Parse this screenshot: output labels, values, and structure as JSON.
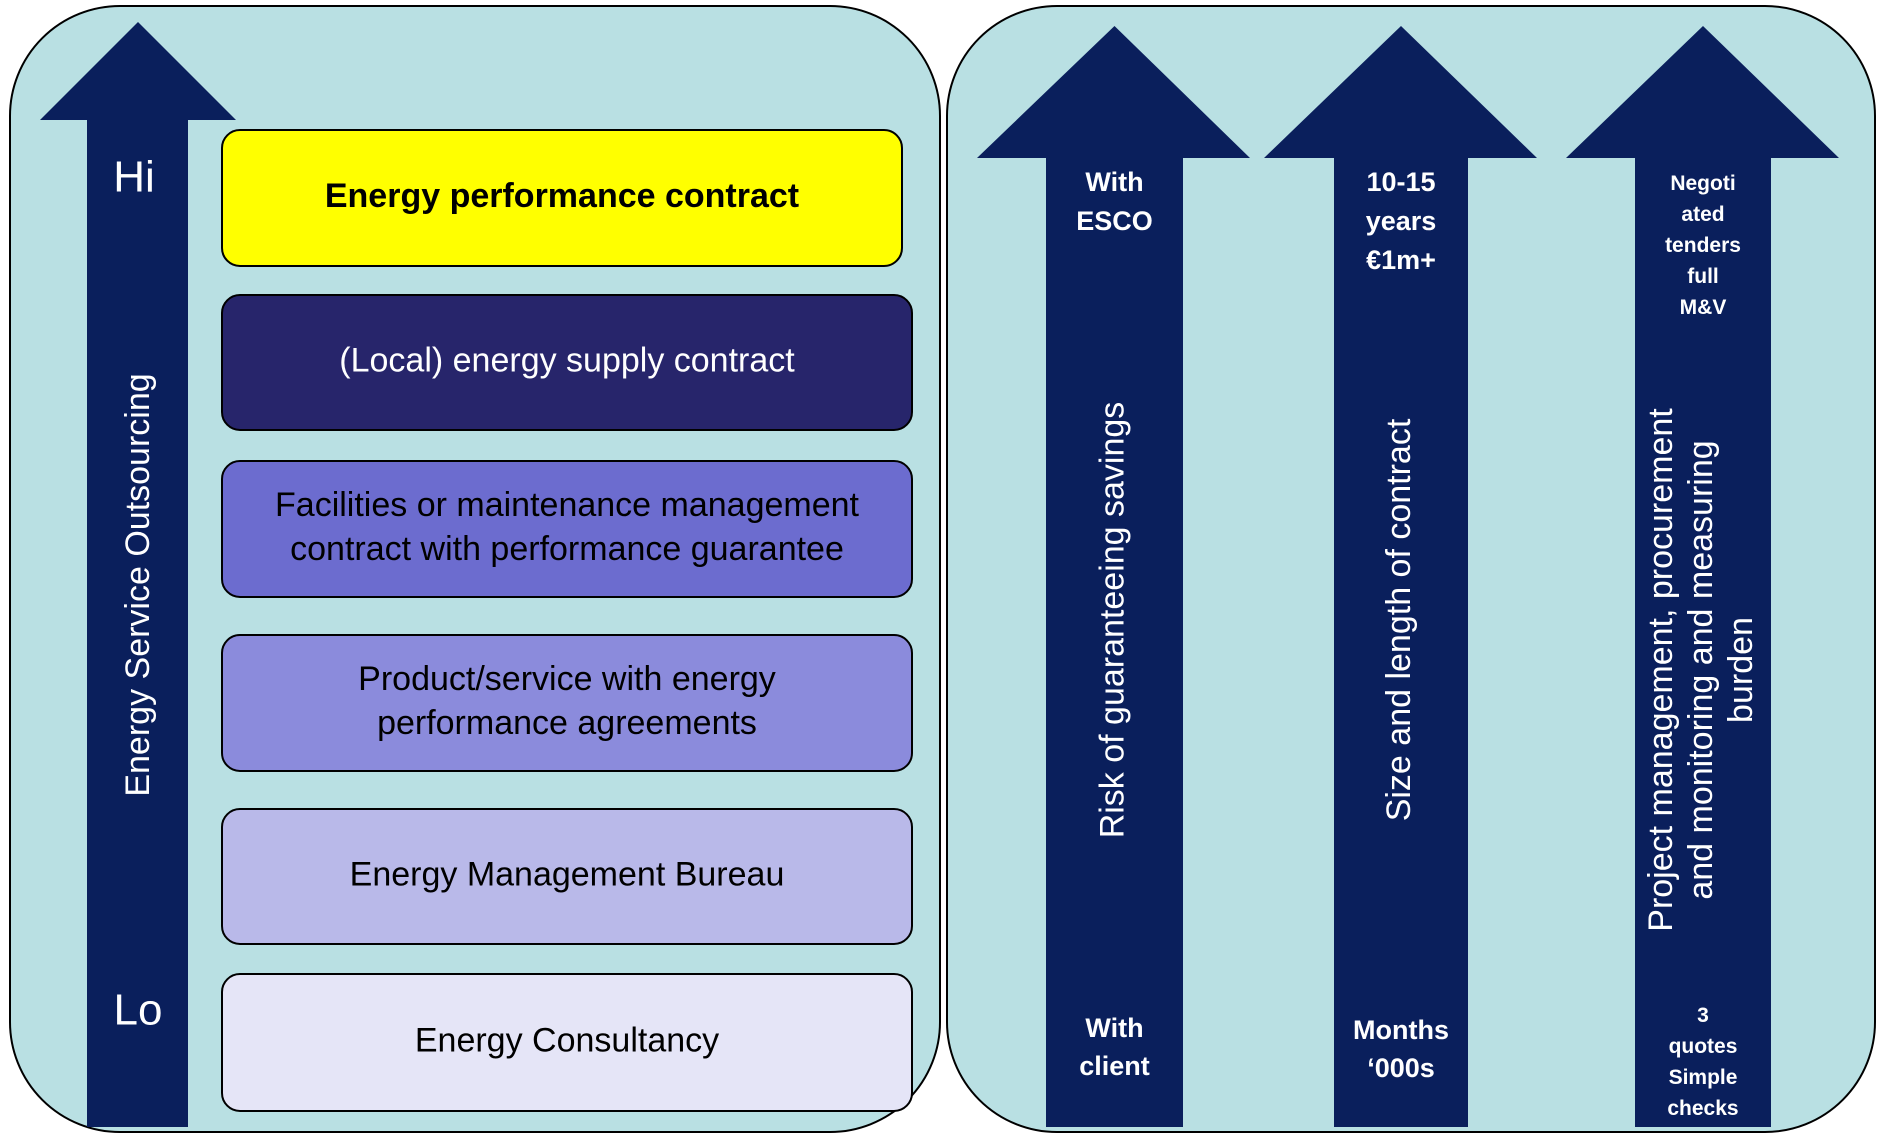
{
  "left": {
    "axis_label": "Energy Service Outsourcing",
    "hi": "Hi",
    "lo": "Lo",
    "boxes": [
      {
        "lines": [
          "Energy performance contract"
        ],
        "color": "#ffff00",
        "text_color": "#000000",
        "bold": true
      },
      {
        "lines": [
          "(Local) energy supply contract"
        ],
        "color": "#27256b",
        "text_color": "#ffffff",
        "bold": false
      },
      {
        "lines": [
          "Facilities or maintenance management",
          "contract with performance guarantee"
        ],
        "color": "#6c6ccf",
        "text_color": "#000000",
        "bold": false
      },
      {
        "lines": [
          "Product/service with energy",
          "performance agreements"
        ],
        "color": "#8b8bdc",
        "text_color": "#000000",
        "bold": false
      },
      {
        "lines": [
          "Energy Management Bureau"
        ],
        "color": "#b9b9e9",
        "text_color": "#000000",
        "bold": false
      },
      {
        "lines": [
          "Energy Consultancy"
        ],
        "color": "#e5e5f7",
        "text_color": "#000000",
        "bold": false
      }
    ]
  },
  "right": {
    "arrows": [
      {
        "top": [
          "With",
          "ESCO"
        ],
        "label": [
          "Risk of guaranteeing savings"
        ],
        "bottom": [
          "With",
          "client"
        ]
      },
      {
        "top": [
          "10-15",
          "years",
          "€1m+"
        ],
        "label": [
          "Size and length of contract"
        ],
        "bottom": [
          "Months",
          "‘000s"
        ]
      },
      {
        "top": [
          "Negoti",
          "ated",
          "tenders",
          "full",
          "M&V"
        ],
        "label": [
          "Project management, procurement",
          "and monitoring and measuring",
          "burden"
        ],
        "bottom": [
          "3",
          "quotes",
          "Simple",
          "checks"
        ]
      }
    ]
  }
}
